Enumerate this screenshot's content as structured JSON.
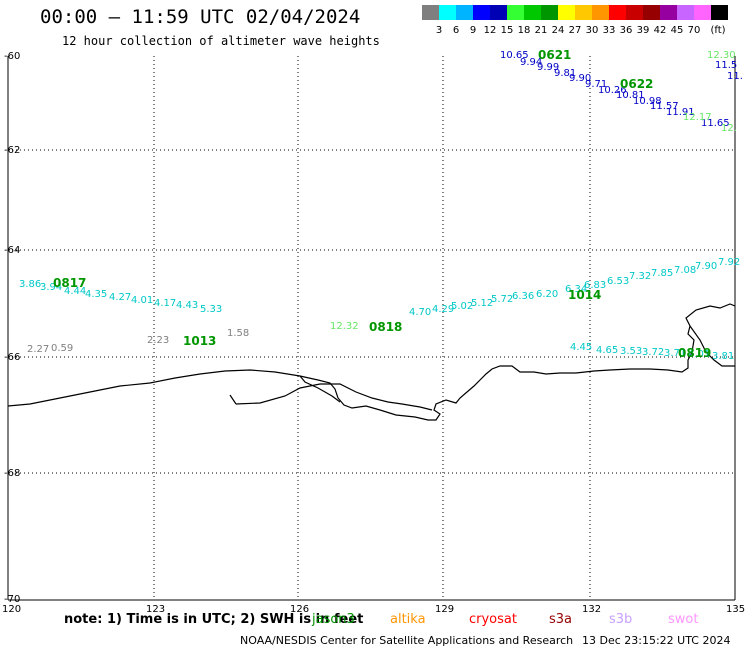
{
  "title": "00:00 – 11:59 UTC 02/04/2024",
  "subtitle": "12 hour collection of altimeter wave heights",
  "colorbar": {
    "units": "(ft)",
    "swatches": [
      {
        "color": "#7f7f7f",
        "label": ""
      },
      {
        "color": "#00ffff",
        "label": "3"
      },
      {
        "color": "#00b4ff",
        "label": "6"
      },
      {
        "color": "#0000ff",
        "label": "9"
      },
      {
        "color": "#0000b4",
        "label": "12"
      },
      {
        "color": "#33ff33",
        "label": "15"
      },
      {
        "color": "#00c800",
        "label": "18"
      },
      {
        "color": "#009600",
        "label": "21"
      },
      {
        "color": "#ffff00",
        "label": "24"
      },
      {
        "color": "#ffc800",
        "label": "27"
      },
      {
        "color": "#ff9600",
        "label": "30"
      },
      {
        "color": "#ff0000",
        "label": "33"
      },
      {
        "color": "#c80000",
        "label": "36"
      },
      {
        "color": "#960000",
        "label": "39"
      },
      {
        "color": "#9600a0",
        "label": "42"
      },
      {
        "color": "#c864ff",
        "label": "45"
      },
      {
        "color": "#ff64ff",
        "label": "70"
      },
      {
        "color": "#000000",
        "label": ""
      }
    ]
  },
  "lat_labels": [
    "-60",
    "-62",
    "-64",
    "-66",
    "-68",
    "-70"
  ],
  "lon_labels": [
    "120",
    "123",
    "126",
    "129",
    "132",
    "135"
  ],
  "wave_labels": [
    {
      "text": "10.65",
      "color": "#0000c8"
    },
    {
      "text": "9.94",
      "color": "#0000c8"
    },
    {
      "text": "9.99",
      "color": "#0000c8"
    },
    {
      "text": "9.81",
      "color": "#0000c8"
    },
    {
      "text": "9.90",
      "color": "#0000c8"
    },
    {
      "text": "9.71",
      "color": "#0000c8"
    },
    {
      "text": "10.26",
      "color": "#0000c8"
    },
    {
      "text": "10.81",
      "color": "#0000c8"
    },
    {
      "text": "10.98",
      "color": "#0000c8"
    },
    {
      "text": "11.57",
      "color": "#0000c8"
    },
    {
      "text": "11.91",
      "color": "#0000c8"
    },
    {
      "text": "11.65",
      "color": "#0000c8"
    },
    {
      "text": "11.5",
      "color": "#0000c8"
    },
    {
      "text": "11.",
      "color": "#0000c8"
    },
    {
      "text": "12.30",
      "color": "#66e666"
    },
    {
      "text": "12.17",
      "color": "#66e666"
    },
    {
      "text": "12.",
      "color": "#66e666"
    },
    {
      "text": "3.86",
      "color": "#00c8c8"
    },
    {
      "text": "3.94",
      "color": "#00c8c8"
    },
    {
      "text": "4.44",
      "color": "#00c8c8"
    },
    {
      "text": "4.35",
      "color": "#00c8c8"
    },
    {
      "text": "4.27",
      "color": "#00c8c8"
    },
    {
      "text": "4.01",
      "color": "#00c8c8"
    },
    {
      "text": "4.17",
      "color": "#00c8c8"
    },
    {
      "text": "4.43",
      "color": "#00c8c8"
    },
    {
      "text": "5.33",
      "color": "#00c8c8"
    },
    {
      "text": "2.27",
      "color": "#808080"
    },
    {
      "text": "0.59",
      "color": "#808080"
    },
    {
      "text": "2.23",
      "color": "#808080"
    },
    {
      "text": "1.58",
      "color": "#808080"
    },
    {
      "text": "12.32",
      "color": "#66e666"
    },
    {
      "text": "4.70",
      "color": "#00c8c8"
    },
    {
      "text": "4.29",
      "color": "#00c8c8"
    },
    {
      "text": "5.02",
      "color": "#00c8c8"
    },
    {
      "text": "5.12",
      "color": "#00c8c8"
    },
    {
      "text": "5.72",
      "color": "#00c8c8"
    },
    {
      "text": "6.36",
      "color": "#00c8c8"
    },
    {
      "text": "6.20",
      "color": "#00c8c8"
    },
    {
      "text": "6.34",
      "color": "#00c8c8"
    },
    {
      "text": "6.83",
      "color": "#00c8c8"
    },
    {
      "text": "6.53",
      "color": "#00c8c8"
    },
    {
      "text": "7.32",
      "color": "#00c8c8"
    },
    {
      "text": "7.85",
      "color": "#00c8c8"
    },
    {
      "text": "7.08",
      "color": "#00c8c8"
    },
    {
      "text": "7.90",
      "color": "#00c8c8"
    },
    {
      "text": "7.92",
      "color": "#00c8c8"
    },
    {
      "text": "4.45",
      "color": "#00c8c8"
    },
    {
      "text": "4.65",
      "color": "#00c8c8"
    },
    {
      "text": "3.53",
      "color": "#00c8c8"
    },
    {
      "text": "3.72",
      "color": "#00c8c8"
    },
    {
      "text": "3.71",
      "color": "#00c8c8"
    },
    {
      "text": "4.01",
      "color": "#00c8c8"
    },
    {
      "text": "3.81",
      "color": "#00c8c8"
    }
  ],
  "time_labels": [
    {
      "text": "0621",
      "color": "#009600"
    },
    {
      "text": "0622",
      "color": "#009600"
    },
    {
      "text": "0817",
      "color": "#009600"
    },
    {
      "text": "1013",
      "color": "#009600"
    },
    {
      "text": "0818",
      "color": "#009600"
    },
    {
      "text": "1014",
      "color": "#009600"
    },
    {
      "text": "0819",
      "color": "#009600"
    }
  ],
  "note": "note: 1) Time is in UTC; 2) SWH is in feet",
  "satellites": [
    {
      "name": "jason3",
      "color": "#009600"
    },
    {
      "name": "altika",
      "color": "#ff9600"
    },
    {
      "name": "cryosat",
      "color": "#ff0000"
    },
    {
      "name": "s3a",
      "color": "#960000"
    },
    {
      "name": "s3b",
      "color": "#c8a0ff"
    },
    {
      "name": "swot",
      "color": "#ff96ff"
    }
  ],
  "credit": "NOAA/NESDIS Center for Satellite Applications and Research",
  "timestamp": "13 Dec 23:15:22 UTC 2024"
}
